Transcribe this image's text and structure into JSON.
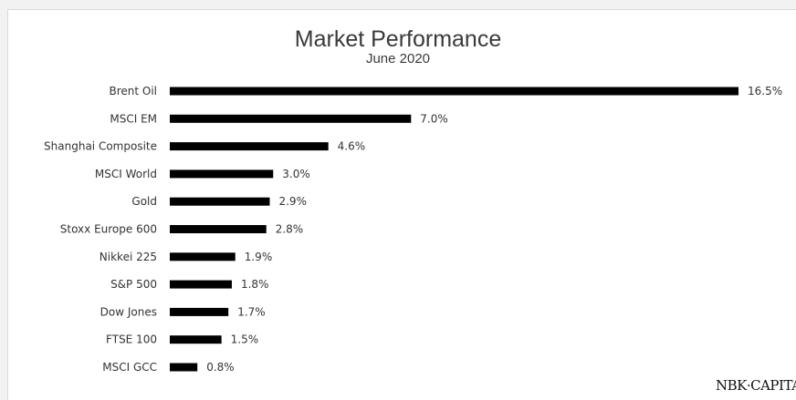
{
  "chart_data": {
    "type": "bar",
    "orientation": "horizontal",
    "title": "Market Performance",
    "subtitle": "June 2020",
    "categories": [
      "Brent Oil",
      "MSCI EM",
      "Shanghai Composite",
      "MSCI World",
      "Gold",
      "Stoxx Europe 600",
      "Nikkei 225",
      "S&P 500",
      "Dow Jones",
      "FTSE 100",
      "MSCI GCC"
    ],
    "values": [
      16.5,
      7.0,
      4.6,
      3.0,
      2.9,
      2.8,
      1.9,
      1.8,
      1.7,
      1.5,
      0.8
    ],
    "value_labels": [
      "16.5%",
      "7.0%",
      "4.6%",
      "3.0%",
      "2.9%",
      "2.8%",
      "1.9%",
      "1.8%",
      "1.7%",
      "1.5%",
      "0.8%"
    ],
    "unit": "%",
    "bar_color": "#000000",
    "grid": false,
    "legend": "none"
  },
  "branding": {
    "logo_text": "NBK·CAPITAL"
  }
}
